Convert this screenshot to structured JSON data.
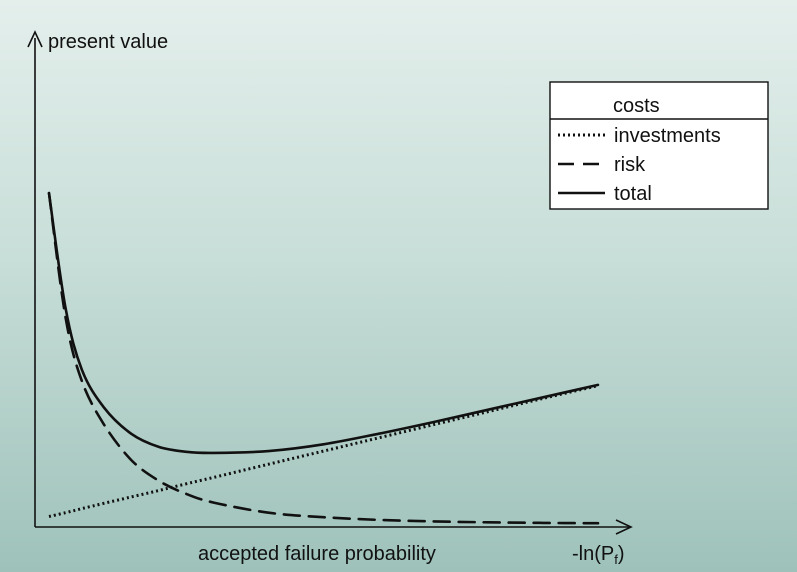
{
  "chart_data": {
    "type": "line",
    "title": "",
    "ylabel": "present value",
    "xlabel": "accepted failure probability",
    "x_axis_end_label": {
      "text": "-ln(P",
      "subscript": "f",
      "suffix": ")"
    },
    "legend": {
      "title": "costs",
      "position": "top-right"
    },
    "xlim": [
      0,
      100
    ],
    "ylim": [
      0,
      100
    ],
    "grid": false,
    "x": [
      0,
      3,
      6,
      10,
      15,
      20,
      25,
      30,
      40,
      50,
      60,
      70,
      80,
      90,
      100
    ],
    "series": [
      {
        "name": "investments",
        "style": "dotted",
        "values": [
          2.0,
          3.0,
          4.1,
          5.5,
          7.2,
          8.9,
          10.7,
          12.4,
          15.9,
          19.4,
          22.9,
          26.4,
          29.9,
          33.4,
          36.8
        ]
      },
      {
        "name": "risk",
        "style": "dashed",
        "values": [
          88.0,
          55.0,
          38.0,
          26.5,
          17.0,
          11.5,
          8.0,
          5.7,
          3.0,
          1.8,
          1.1,
          0.7,
          0.45,
          0.3,
          0.2
        ]
      },
      {
        "name": "total",
        "style": "solid",
        "values": [
          88.0,
          57.5,
          41.0,
          31.0,
          24.0,
          20.5,
          19.2,
          18.9,
          19.4,
          21.2,
          24.0,
          27.1,
          30.4,
          33.7,
          37.0
        ]
      }
    ]
  },
  "colors": {
    "ink": "#111111",
    "legend_bg": "#ffffff"
  }
}
